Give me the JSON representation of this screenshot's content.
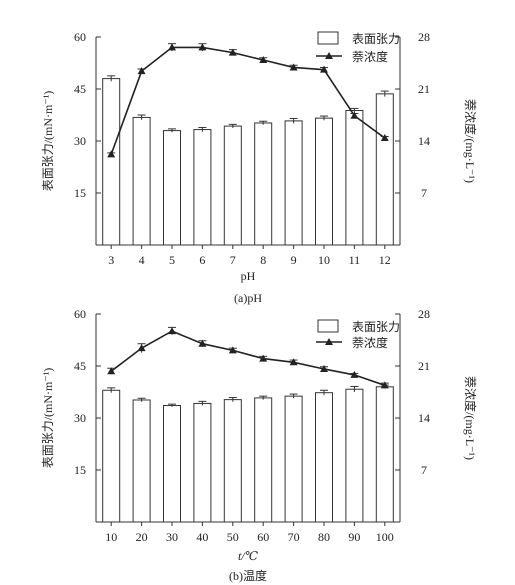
{
  "chart_data": [
    {
      "type": "bar",
      "categories": [
        "3",
        "4",
        "5",
        "6",
        "7",
        "8",
        "9",
        "10",
        "11",
        "12"
      ],
      "xlabel": "pH",
      "caption": "(a)pH",
      "ylabel_left": "表面张力/(mN·m⁻¹)",
      "ylabel_right": "萘浓度/(mg·L⁻¹)",
      "ylim_left": [
        0,
        60
      ],
      "yticks_left": [
        "15",
        "30",
        "45",
        "60"
      ],
      "ylim_right": [
        0,
        28
      ],
      "yticks_right": [
        "7",
        "14",
        "21",
        "28"
      ],
      "legend": {
        "bar": "表面张力",
        "line": "萘浓度",
        "position": "top-right"
      },
      "series": [
        {
          "name": "表面张力",
          "kind": "bar",
          "axis": "left",
          "values": [
            48.0,
            36.8,
            33.0,
            33.3,
            34.3,
            35.2,
            35.8,
            36.6,
            38.8,
            43.6
          ],
          "errors": [
            0.8,
            0.7,
            0.5,
            0.6,
            0.5,
            0.5,
            0.7,
            0.6,
            0.6,
            0.8
          ]
        },
        {
          "name": "萘浓度",
          "kind": "line",
          "axis": "right",
          "values": [
            12.2,
            23.4,
            26.6,
            26.6,
            25.9,
            24.9,
            23.9,
            23.6,
            17.4,
            14.4
          ],
          "errors": [
            0.2,
            0.3,
            0.5,
            0.5,
            0.4,
            0.3,
            0.3,
            0.3,
            0.3,
            0.2
          ]
        }
      ]
    },
    {
      "type": "bar",
      "categories": [
        "10",
        "20",
        "30",
        "40",
        "50",
        "60",
        "70",
        "80",
        "90",
        "100"
      ],
      "xlabel": "t/℃",
      "caption": "(b)温度",
      "ylabel_left": "表面张力/(mN·m⁻¹)",
      "ylabel_right": "萘浓度/(mg·L⁻¹)",
      "ylim_left": [
        0,
        60
      ],
      "yticks_left": [
        "15",
        "30",
        "45",
        "60"
      ],
      "ylim_right": [
        0,
        28
      ],
      "yticks_right": [
        "7",
        "14",
        "21",
        "28"
      ],
      "legend": {
        "bar": "表面张力",
        "line": "萘浓度",
        "position": "top-right"
      },
      "series": [
        {
          "name": "表面张力",
          "kind": "bar",
          "axis": "left",
          "values": [
            38.0,
            35.2,
            33.6,
            34.2,
            35.3,
            35.8,
            36.3,
            37.3,
            38.3,
            39.0
          ],
          "errors": [
            0.7,
            0.5,
            0.4,
            0.6,
            0.6,
            0.5,
            0.6,
            0.7,
            0.8,
            0.5
          ]
        },
        {
          "name": "萘浓度",
          "kind": "line",
          "axis": "right",
          "values": [
            20.3,
            23.4,
            25.7,
            24.0,
            23.1,
            22.0,
            21.5,
            20.6,
            19.8,
            18.4
          ],
          "errors": [
            0.4,
            0.6,
            0.5,
            0.4,
            0.3,
            0.3,
            0.3,
            0.3,
            0.2,
            0.3
          ]
        }
      ]
    }
  ]
}
